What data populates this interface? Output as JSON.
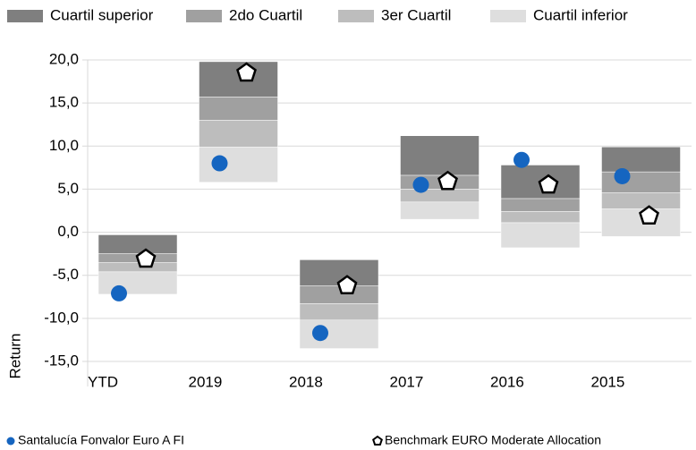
{
  "chart_data": {
    "type": "floating-quartile",
    "categories": [
      "YTD",
      "2019",
      "2018",
      "2017",
      "2016",
      "2015"
    ],
    "y_label": "Return",
    "ylim": [
      -15,
      20
    ],
    "yticks": [
      {
        "value": -15,
        "label": "-15,0"
      },
      {
        "value": -10,
        "label": "-10,0"
      },
      {
        "value": -5,
        "label": "-5,0"
      },
      {
        "value": 0,
        "label": "0,0"
      },
      {
        "value": 5,
        "label": "5,0"
      },
      {
        "value": 10,
        "label": "10,0"
      },
      {
        "value": 15,
        "label": "15,0"
      },
      {
        "value": 20,
        "label": "20,0"
      }
    ],
    "grid": true,
    "quartiles": [
      {
        "name": "Cuartil superior",
        "color": "#7f7f7f",
        "values": [
          [
            -2.5,
            -0.3
          ],
          [
            15.7,
            19.8
          ],
          [
            -6.2,
            -3.2
          ],
          [
            6.6,
            11.2
          ],
          [
            3.9,
            7.8
          ],
          [
            7.0,
            9.9
          ]
        ]
      },
      {
        "name": "2do Cuartil",
        "color": "#a0a0a0",
        "values": [
          [
            -3.5,
            -2.5
          ],
          [
            13.0,
            15.7
          ],
          [
            -8.3,
            -6.2
          ],
          [
            5.0,
            6.6
          ],
          [
            2.4,
            3.9
          ],
          [
            4.6,
            7.0
          ]
        ]
      },
      {
        "name": "3er Cuartil",
        "color": "#bdbdbd",
        "values": [
          [
            -4.6,
            -3.5
          ],
          [
            9.9,
            13.0
          ],
          [
            -10.2,
            -8.3
          ],
          [
            3.5,
            5.0
          ],
          [
            1.1,
            2.4
          ],
          [
            2.7,
            4.6
          ]
        ]
      },
      {
        "name": "Cuartil inferior",
        "color": "#dedede",
        "values": [
          [
            -7.2,
            -4.6
          ],
          [
            5.8,
            9.9
          ],
          [
            -13.5,
            -10.2
          ],
          [
            1.5,
            3.5
          ],
          [
            -1.8,
            1.1
          ],
          [
            -0.5,
            2.7
          ]
        ]
      }
    ],
    "series": [
      {
        "name": "Santalucía Fonvalor Euro A FI",
        "color": "#1565c0",
        "marker": "circle",
        "values": [
          -7.1,
          8.0,
          -11.7,
          5.5,
          8.4,
          6.5
        ]
      },
      {
        "name": "Benchmark EURO Moderate Allocation",
        "color": "#000000",
        "marker": "pentagon",
        "values": [
          -3.0,
          18.6,
          -6.1,
          6.0,
          5.6,
          2.0
        ]
      }
    ]
  }
}
